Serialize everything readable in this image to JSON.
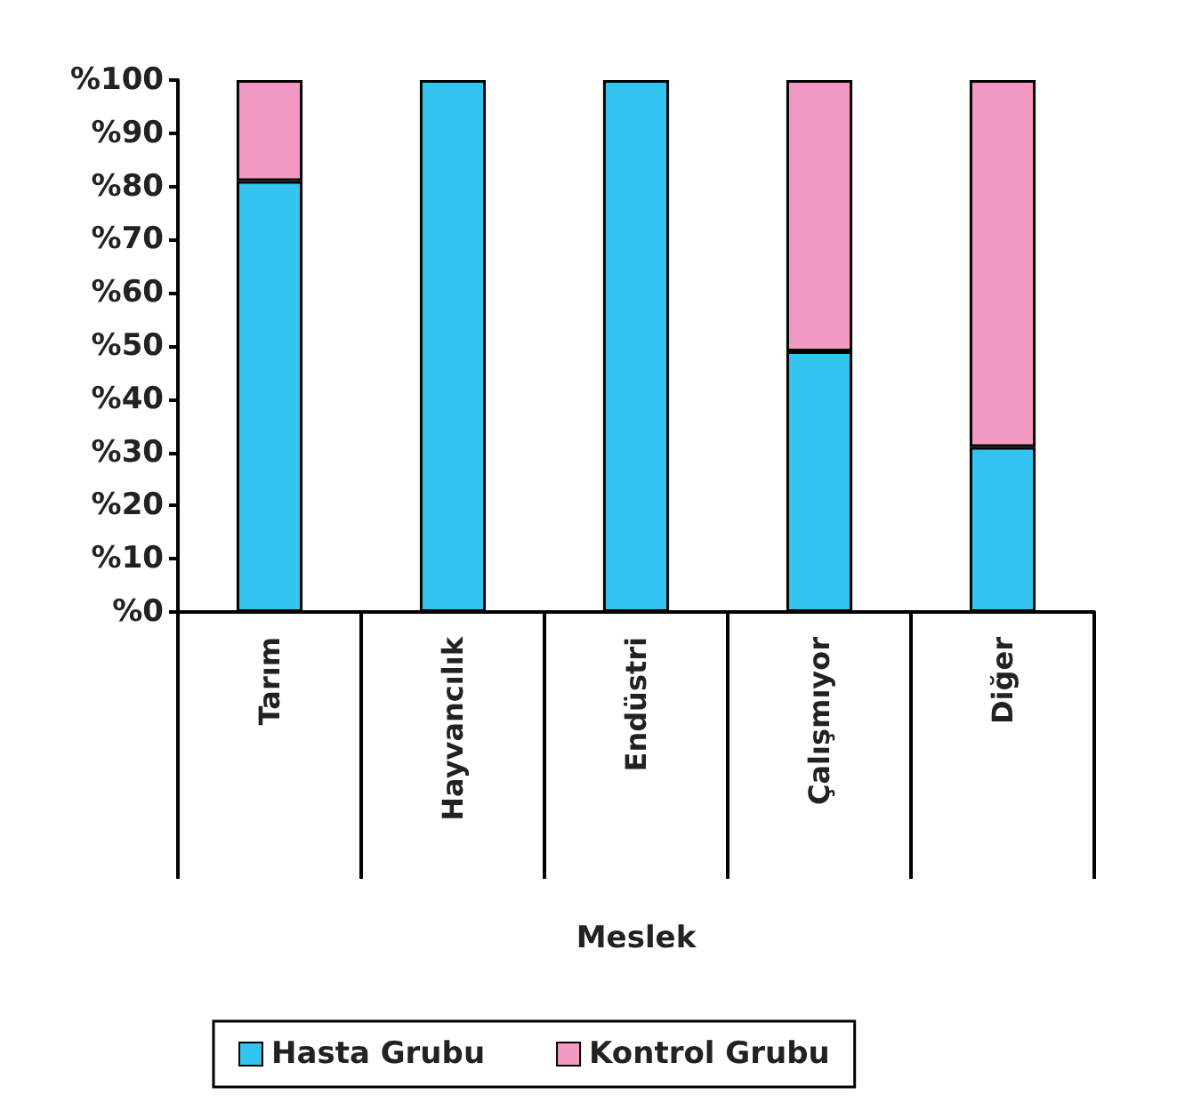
{
  "chart_data": {
    "type": "bar",
    "stacked": true,
    "xlabel": "Meslek",
    "categories": [
      "Tarım",
      "Hayvancılık",
      "Endüstri",
      "Çalışmıyor",
      "Diğer"
    ],
    "series": [
      {
        "name": "Hasta Grubu",
        "color": "#33c4f0",
        "values": [
          81,
          100,
          100,
          49,
          31
        ]
      },
      {
        "name": "Kontrol Grubu",
        "color": "#f29ac3",
        "values": [
          19,
          0,
          0,
          51,
          69
        ]
      }
    ],
    "ylim": [
      0,
      100
    ],
    "yticks": [
      {
        "value": 0,
        "label": "%0"
      },
      {
        "value": 10,
        "label": "%10"
      },
      {
        "value": 20,
        "label": "%20"
      },
      {
        "value": 30,
        "label": "%30"
      },
      {
        "value": 40,
        "label": "%40"
      },
      {
        "value": 50,
        "label": "%50"
      },
      {
        "value": 60,
        "label": "%60"
      },
      {
        "value": 70,
        "label": "%70"
      },
      {
        "value": 80,
        "label": "%80"
      },
      {
        "value": 90,
        "label": "%90"
      },
      {
        "value": 100,
        "label": "%100"
      }
    ],
    "grid": false,
    "legend": "bottom"
  }
}
